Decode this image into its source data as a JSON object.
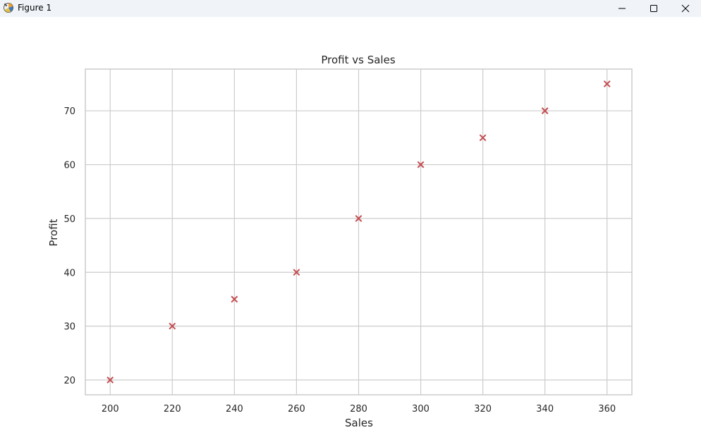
{
  "window": {
    "title": "Figure 1",
    "icon": "matplotlib-figure-icon",
    "controls": [
      "minimize-icon",
      "maximize-icon",
      "close-icon"
    ]
  },
  "chart_data": {
    "type": "scatter",
    "title": "Profit vs Sales",
    "xlabel": "Sales",
    "ylabel": "Profit",
    "x": [
      200,
      220,
      240,
      260,
      280,
      300,
      320,
      340,
      360
    ],
    "y": [
      20,
      30,
      35,
      40,
      50,
      60,
      65,
      70,
      75
    ],
    "xlim": [
      192,
      368
    ],
    "ylim": [
      17.25,
      77.75
    ],
    "xticks": [
      200,
      220,
      240,
      260,
      280,
      300,
      320,
      340,
      360
    ],
    "yticks": [
      20,
      30,
      40,
      50,
      60,
      70
    ],
    "xtick_labels": [
      "200",
      "220",
      "240",
      "260",
      "280",
      "300",
      "320",
      "340",
      "360"
    ],
    "ytick_labels": [
      "20",
      "30",
      "40",
      "50",
      "60",
      "70"
    ],
    "marker": "x",
    "marker_color": "#c44e52",
    "grid": true,
    "grid_color": "#cccccc",
    "legend": "none"
  }
}
